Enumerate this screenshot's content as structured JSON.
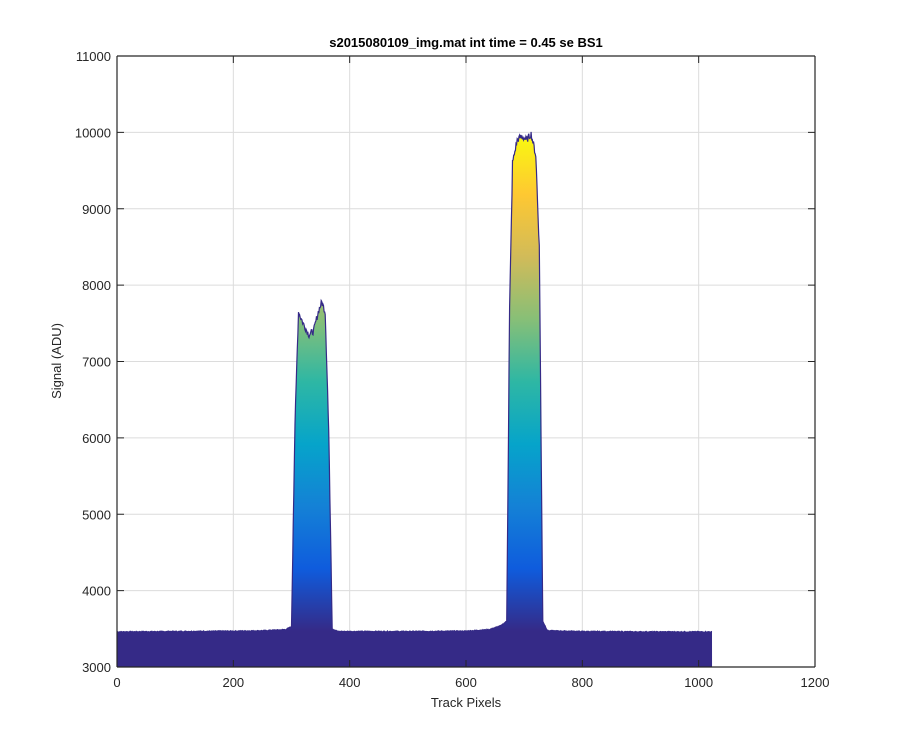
{
  "chart_data": {
    "type": "area",
    "title": "s2015080109_img.mat int time = 0.45 se   BS1",
    "xlabel": "Track Pixels",
    "ylabel": "Signal (ADU)",
    "xlim": [
      0,
      1200
    ],
    "ylim": [
      3000,
      11000
    ],
    "xticks": [
      0,
      200,
      400,
      600,
      800,
      1000,
      1200
    ],
    "yticks": [
      3000,
      4000,
      5000,
      6000,
      7000,
      8000,
      9000,
      10000,
      11000
    ],
    "grid": true,
    "colormap": "parula",
    "colormap_stops": [
      "#352a87",
      "#0f5cdd",
      "#1481d6",
      "#06a4ca",
      "#2eb7a4",
      "#87bf77",
      "#d1bb59",
      "#fec832",
      "#f9fb0e"
    ],
    "series": [
      {
        "x": [
          0,
          100,
          200,
          250,
          290,
          300,
          306,
          312,
          320,
          330,
          338,
          346,
          352,
          358,
          364,
          370,
          380,
          420,
          500,
          600,
          640,
          660,
          670,
          675,
          680,
          688,
          696,
          704,
          712,
          720,
          726,
          732,
          740,
          800,
          900,
          1023
        ],
        "y": [
          3460,
          3465,
          3470,
          3475,
          3490,
          3530,
          6200,
          7650,
          7500,
          7350,
          7400,
          7650,
          7780,
          7650,
          6100,
          3500,
          3465,
          3465,
          3465,
          3470,
          3490,
          3540,
          3600,
          7700,
          9600,
          9900,
          9950,
          9900,
          9980,
          9700,
          8500,
          3600,
          3475,
          3465,
          3460,
          3460
        ]
      }
    ]
  }
}
